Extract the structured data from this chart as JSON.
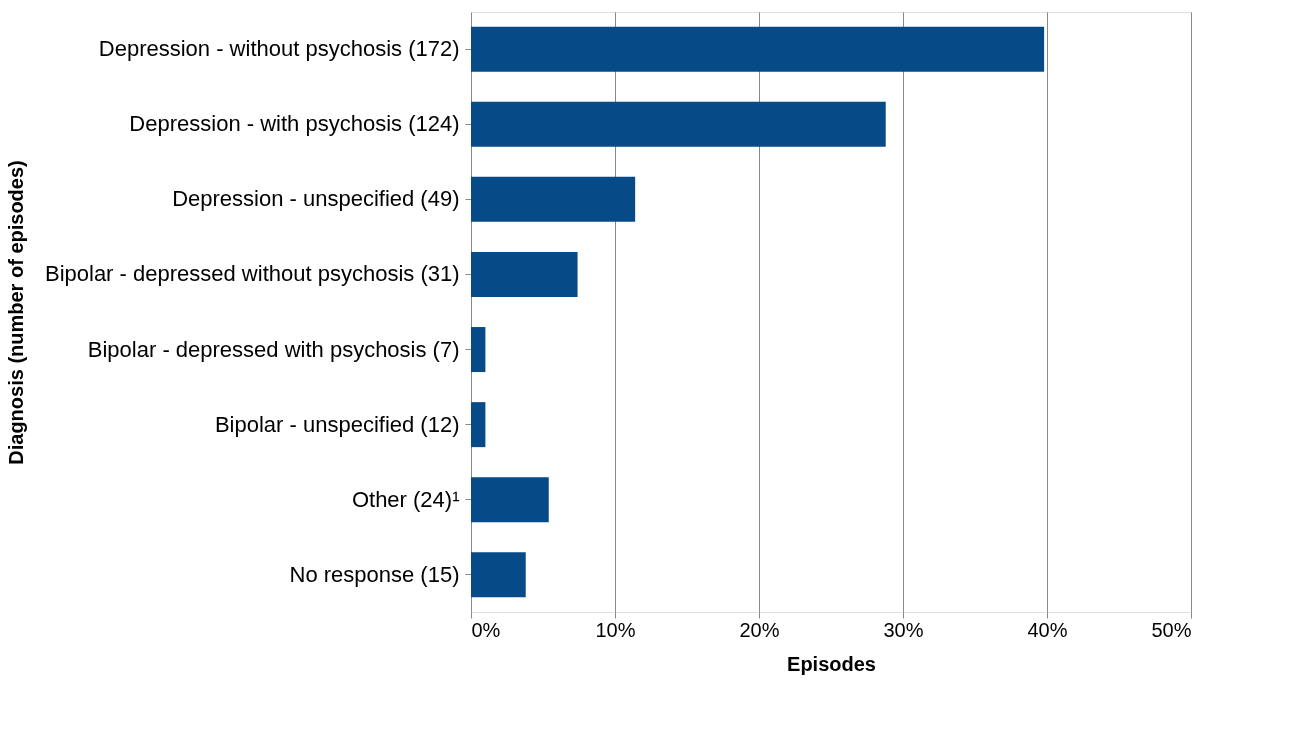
{
  "chart_data": {
    "type": "bar",
    "orientation": "horizontal",
    "xlabel": "Episodes",
    "ylabel": "Diagnosis (number of episodes)",
    "categories": [
      "Depression - without psychosis (172)",
      "Depression - with psychosis (124)",
      "Depression - unspecified (49)",
      "Bipolar - depressed without psychosis (31)",
      "Bipolar - depressed with psychosis (7)",
      "Bipolar - unspecified (12)",
      "Other (24)¹",
      "No response (15)"
    ],
    "values": [
      39.8,
      28.8,
      11.4,
      7.4,
      1.0,
      1.0,
      5.4,
      3.8
    ],
    "color": "#064a88",
    "xlim": [
      0,
      50
    ],
    "xticks": [
      {
        "value": 0,
        "label": "0%"
      },
      {
        "value": 10,
        "label": "10%"
      },
      {
        "value": 20,
        "label": "20%"
      },
      {
        "value": 30,
        "label": "30%"
      },
      {
        "value": 40,
        "label": "40%"
      },
      {
        "value": 50,
        "label": "50%"
      }
    ],
    "grid": "x"
  }
}
